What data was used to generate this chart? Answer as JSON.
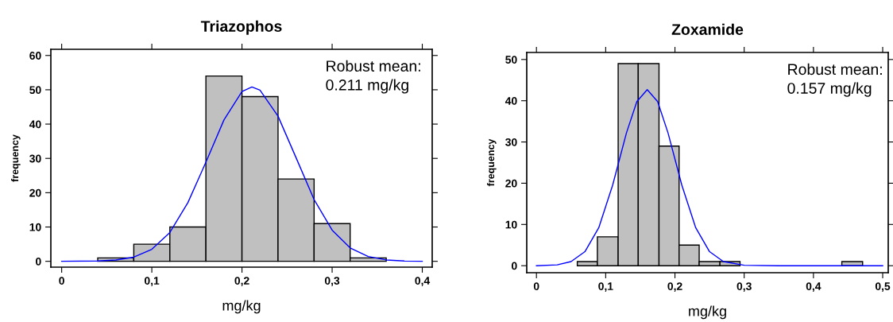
{
  "chart_data": [
    {
      "type": "histogram",
      "title": "Triazophos",
      "xlabel": "mg/kg",
      "ylabel": "frequency",
      "annotations": [
        "Robust mean:\n0.211 mg/kg"
      ],
      "xlim": [
        -0.012,
        0.411
      ],
      "ylim": [
        -1.7,
        61.8
      ],
      "xticks": [
        0,
        {
          "value": 0.1,
          "label": "0,1"
        },
        {
          "value": 0.2,
          "label": "0,2"
        },
        {
          "value": 0.3,
          "label": "0,3"
        },
        {
          "value": 0.4,
          "label": "0,4"
        }
      ],
      "yticks": [
        0,
        10,
        20,
        30,
        40,
        50,
        60
      ],
      "grid": false,
      "legend": false,
      "series": [
        {
          "color": "#c0c0c0",
          "bins": [
            0.04,
            0.08,
            0.12,
            0.16,
            0.2,
            0.24,
            0.28,
            0.32,
            0.36
          ],
          "values": [
            1,
            5,
            10,
            54,
            48,
            24,
            11,
            1
          ]
        },
        {
          "type": "line",
          "color": "#0000ff",
          "x": [
            0,
            0.04,
            0.06,
            0.08,
            0.1,
            0.12,
            0.14,
            0.16,
            0.18,
            0.2,
            0.211,
            0.22,
            0.24,
            0.26,
            0.28,
            0.3,
            0.32,
            0.34,
            0.36,
            0.38,
            0.4
          ],
          "values": [
            0,
            0.1,
            0.4,
            1.2,
            3.5,
            8.4,
            17.1,
            28.9,
            41.2,
            49.5,
            50.8,
            49.9,
            42.3,
            30.2,
            18.0,
            9.1,
            3.9,
            1.4,
            0.4,
            0.1,
            0
          ]
        }
      ]
    },
    {
      "type": "histogram",
      "title": "Zoxamide",
      "xlabel": "mg/kg",
      "ylabel": "frequency",
      "annotations": [
        "Robust mean:\n0.157 mg/kg"
      ],
      "xlim": [
        -0.014,
        0.508
      ],
      "ylim": [
        -1.7,
        51.7
      ],
      "xticks": [
        0,
        {
          "value": 0.1,
          "label": "0,1"
        },
        {
          "value": 0.2,
          "label": "0,2"
        },
        {
          "value": 0.3,
          "label": "0,3"
        },
        {
          "value": 0.4,
          "label": "0,4"
        },
        {
          "value": 0.5,
          "label": "0,5"
        }
      ],
      "yticks": [
        0,
        10,
        20,
        30,
        40,
        50
      ],
      "grid": false,
      "legend": false,
      "series": [
        {
          "color": "#c0c0c0",
          "bins": [
            0.059,
            0.088,
            0.118,
            0.147,
            0.177,
            0.206,
            0.235,
            0.265,
            0.294
          ],
          "values": [
            1,
            7,
            49,
            49,
            29,
            5,
            1,
            1
          ]
        },
        {
          "color": "#c0c0c0",
          "bins": [
            0.441,
            0.471
          ],
          "values": [
            1
          ]
        },
        {
          "type": "line",
          "color": "#0000ff",
          "x": [
            0,
            0.03,
            0.05,
            0.07,
            0.09,
            0.11,
            0.13,
            0.145,
            0.16,
            0.175,
            0.19,
            0.21,
            0.23,
            0.25,
            0.27,
            0.3,
            0.35,
            0.4,
            0.45,
            0.5
          ],
          "values": [
            0,
            0.2,
            1.0,
            3.4,
            9.2,
            19.5,
            32.2,
            39.8,
            42.7,
            39.8,
            32.2,
            19.5,
            9.2,
            3.4,
            1.0,
            0.1,
            0,
            0,
            0,
            0
          ]
        }
      ]
    }
  ]
}
